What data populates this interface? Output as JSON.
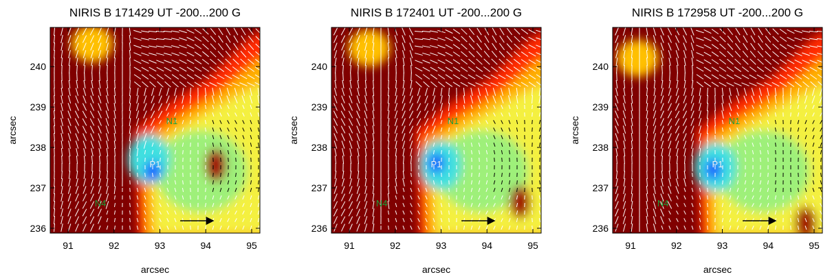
{
  "chart_data": [
    {
      "type": "image",
      "title": "NIRIS B 171429 UT -200...200 G",
      "xlabel": "arcsec",
      "ylabel": "arcsec",
      "xlim": [
        90.61,
        95.18
      ],
      "ylim": [
        235.88,
        240.97
      ],
      "xticks": [
        91,
        92,
        93,
        94,
        95
      ],
      "yticks": [
        236,
        237,
        238,
        239,
        240
      ],
      "annotations": [
        "N1",
        "P1",
        "N4"
      ]
    },
    {
      "type": "image",
      "title": "NIRIS B 172401 UT -200...200 G",
      "xlabel": "arcsec",
      "ylabel": "arcsec",
      "xlim": [
        90.61,
        95.18
      ],
      "ylim": [
        235.88,
        240.97
      ],
      "xticks": [
        91,
        92,
        93,
        94,
        95
      ],
      "yticks": [
        236,
        237,
        238,
        239,
        240
      ],
      "annotations": [
        "N1",
        "P1",
        "N4"
      ]
    },
    {
      "type": "image",
      "title": "NIRIS B 172958 UT -200...200 G",
      "xlabel": "arcsec",
      "ylabel": "arcsec",
      "xlim": [
        90.61,
        95.18
      ],
      "ylim": [
        235.88,
        240.97
      ],
      "xticks": [
        91,
        92,
        93,
        94,
        95
      ],
      "yticks": [
        236,
        237,
        238,
        239,
        240
      ],
      "annotations": [
        "N1",
        "P1",
        "N4"
      ]
    }
  ]
}
